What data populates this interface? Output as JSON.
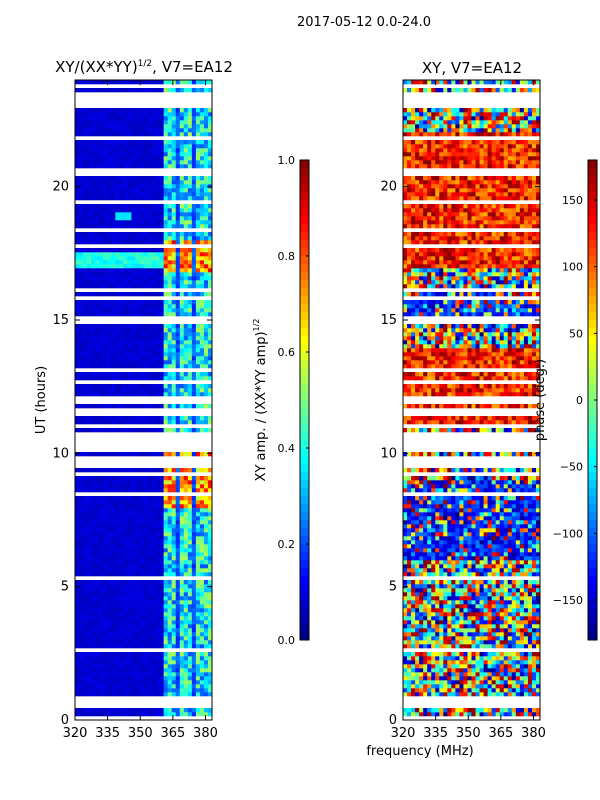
{
  "figure": {
    "suptitle": "2017-05-12 0.0-24.0",
    "xlabel": "frequency (MHz)"
  },
  "chart_data": [
    {
      "type": "heatmap",
      "title_main": "XY/(XX*YY)",
      "title_sup": "1/2",
      "title_tail": ", V7=EA12",
      "xlabel": "",
      "ylabel": "UT (hours)",
      "xlim": [
        320,
        383
      ],
      "ylim": [
        0,
        24
      ],
      "xticks": [
        320,
        335,
        350,
        365,
        380
      ],
      "yticks": [
        0,
        5,
        10,
        15,
        20
      ],
      "colorbar": {
        "label_main": "XY amp. / (XX*YY amp)",
        "label_sup": "1/2",
        "range": [
          0.0,
          1.0
        ],
        "ticks": [
          "0.0",
          "0.2",
          "0.4",
          "0.6",
          "0.8",
          "1.0"
        ],
        "tick_values": [
          0.0,
          0.2,
          0.4,
          0.6,
          0.8,
          1.0
        ],
        "colormap": "jet"
      },
      "description": "Normalized cross-correlation amplitude vs frequency and UT; low (~0.05) across 320-360 MHz, elevated (0.2-0.9) across 361-382 MHz with peak ~0.9 near 17.3 UT and ~0.8 near 8-10 UT; many white flagged time rows."
    },
    {
      "type": "heatmap",
      "title": "XY, V7=EA12",
      "xlabel": "",
      "ylabel": "",
      "xlim": [
        320,
        383
      ],
      "ylim": [
        0,
        24
      ],
      "xticks": [
        320,
        335,
        350,
        365,
        380
      ],
      "yticks": [
        0,
        5,
        10,
        15,
        20
      ],
      "colorbar": {
        "label": "phase (deg.)",
        "range": [
          -180,
          180
        ],
        "ticks": [
          "150",
          "100",
          "50",
          "0",
          "−50",
          "−100",
          "−150"
        ],
        "tick_values": [
          150,
          100,
          50,
          0,
          -50,
          -100,
          -150
        ],
        "colormap": "jet"
      },
      "description": "Cross-correlation phase (deg.) vs frequency and UT; noisy spanning -180..180 with red/orange (~+100..+180) dominant in 11-14 and 17-22 UT and blue patches (~-130..-180) around 6-9 and 15-16 UT; white flagged time rows."
    }
  ]
}
